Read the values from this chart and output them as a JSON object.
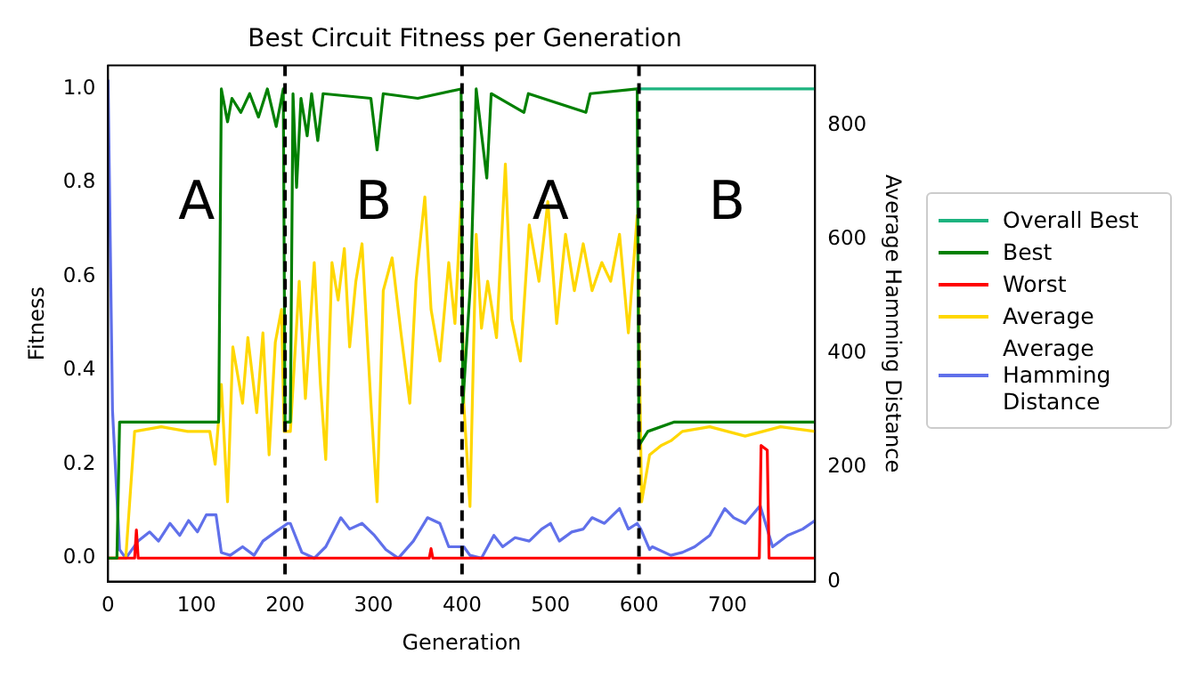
{
  "chart_data": {
    "type": "line",
    "title": "Best Circuit Fitness per Generation",
    "xlabel": "Generation",
    "ylabel": "Fitness",
    "y2label": "Average Hamming Distance",
    "xlim": [
      0,
      799
    ],
    "xticks": [
      0,
      100,
      200,
      300,
      400,
      500,
      600,
      700
    ],
    "ylim": [
      -0.05,
      1.05
    ],
    "yticks": [
      {
        "value": 0,
        "label": "0.0"
      },
      {
        "value": 0.2,
        "label": "0.2"
      },
      {
        "value": 0.4,
        "label": "0.4"
      },
      {
        "value": 0.6,
        "label": "0.6"
      },
      {
        "value": 0.8,
        "label": "0.8"
      },
      {
        "value": 1,
        "label": "1.0"
      }
    ],
    "y2lim": [
      0,
      905
    ],
    "y2ticks": [
      0,
      200,
      400,
      600,
      800
    ],
    "grid": false,
    "legend": "right",
    "line_style": "solid",
    "marker": "none",
    "series": [
      {
        "name": "Overall Best",
        "color": "#1db37f",
        "x": [
          598,
          799
        ],
        "values": [
          1,
          1
        ]
      },
      {
        "name": "Best",
        "color": "#008000",
        "x": [
          0,
          10,
          13,
          125,
          128,
          135,
          140,
          150,
          160,
          170,
          180,
          190,
          198,
          200,
          206,
          209,
          213,
          218,
          225,
          230,
          237,
          243,
          297,
          304,
          311,
          350,
          399,
          401,
          410,
          416,
          428,
          433,
          470,
          475,
          540,
          545,
          598,
          600,
          610,
          640,
          799
        ],
        "values": [
          0,
          0,
          0.29,
          0.29,
          1,
          0.93,
          0.98,
          0.95,
          0.99,
          0.94,
          1,
          0.92,
          1,
          0.29,
          0.29,
          0.99,
          0.79,
          0.98,
          0.9,
          0.99,
          0.89,
          0.99,
          0.98,
          0.87,
          0.99,
          0.98,
          1,
          0.33,
          0.6,
          1,
          0.81,
          0.99,
          0.95,
          0.99,
          0.95,
          0.99,
          1,
          0.24,
          0.27,
          0.29,
          0.29
        ]
      },
      {
        "name": "Worst",
        "color": "#ff0000",
        "x": [
          0,
          30,
          32,
          34,
          363,
          365,
          367,
          736,
          738,
          745,
          747,
          799
        ],
        "values": [
          0,
          0,
          0.06,
          0,
          0,
          0.02,
          0,
          0,
          0.24,
          0.23,
          0,
          0
        ]
      },
      {
        "name": "Average",
        "color": "#ffd700",
        "x": [
          0,
          20,
          30,
          60,
          90,
          115,
          121,
          128,
          135,
          141,
          152,
          158,
          168,
          175,
          182,
          189,
          196,
          199,
          206,
          216,
          223,
          233,
          240,
          246,
          253,
          260,
          267,
          273,
          280,
          287,
          297,
          304,
          311,
          321,
          331,
          341,
          348,
          358,
          365,
          375,
          385,
          392,
          399,
          402,
          409,
          416,
          422,
          429,
          439,
          449,
          456,
          466,
          476,
          487,
          497,
          507,
          517,
          527,
          537,
          547,
          558,
          568,
          578,
          588,
          598,
          603,
          612,
          625,
          636,
          649,
          680,
          720,
          760,
          799
        ],
        "values": [
          0,
          0,
          0.27,
          0.28,
          0.27,
          0.27,
          0.2,
          0.37,
          0.12,
          0.45,
          0.33,
          0.47,
          0.31,
          0.48,
          0.22,
          0.46,
          0.53,
          0.27,
          0.27,
          0.59,
          0.34,
          0.63,
          0.37,
          0.21,
          0.63,
          0.55,
          0.66,
          0.45,
          0.59,
          0.67,
          0.33,
          0.12,
          0.57,
          0.64,
          0.48,
          0.33,
          0.59,
          0.77,
          0.53,
          0.42,
          0.63,
          0.5,
          0.76,
          0.33,
          0.11,
          0.69,
          0.49,
          0.59,
          0.47,
          0.84,
          0.51,
          0.42,
          0.71,
          0.59,
          0.76,
          0.5,
          0.69,
          0.57,
          0.67,
          0.57,
          0.63,
          0.59,
          0.69,
          0.48,
          0.73,
          0.12,
          0.22,
          0.24,
          0.25,
          0.27,
          0.28,
          0.26,
          0.28,
          0.27
        ]
      },
      {
        "name": "Average Hamming Distance",
        "color": "#6070ea",
        "axis": "y2",
        "x": [
          0,
          5,
          13,
          20,
          34,
          47,
          57,
          70,
          81,
          91,
          101,
          111,
          122,
          128,
          138,
          152,
          165,
          175,
          189,
          203,
          206,
          219,
          233,
          246,
          263,
          273,
          287,
          301,
          314,
          328,
          345,
          361,
          375,
          385,
          402,
          409,
          422,
          436,
          446,
          460,
          476,
          490,
          500,
          510,
          524,
          537,
          547,
          561,
          578,
          588,
          598,
          602,
          612,
          615,
          636,
          649,
          663,
          680,
          697,
          707,
          720,
          737,
          751,
          768,
          785,
          799
        ],
        "values": [
          880,
          300,
          56,
          41,
          71,
          87,
          71,
          102,
          81,
          107,
          87,
          117,
          117,
          51,
          46,
          61,
          46,
          71,
          87,
          102,
          102,
          51,
          41,
          61,
          112,
          92,
          102,
          81,
          56,
          41,
          71,
          112,
          102,
          61,
          61,
          46,
          41,
          81,
          61,
          77,
          71,
          92,
          102,
          71,
          87,
          92,
          112,
          102,
          128,
          92,
          102,
          92,
          56,
          61,
          46,
          51,
          61,
          81,
          128,
          112,
          102,
          133,
          61,
          81,
          92,
          107
        ]
      }
    ],
    "ref_lines": [
      {
        "axis": "x",
        "value": 200,
        "color": "#000000",
        "line_style": "dashed"
      },
      {
        "axis": "x",
        "value": 400,
        "color": "#000000",
        "line_style": "dashed"
      },
      {
        "axis": "x",
        "value": 600,
        "color": "#000000",
        "line_style": "dashed"
      }
    ],
    "annotations": [
      "A",
      "B",
      "A",
      "B"
    ]
  }
}
